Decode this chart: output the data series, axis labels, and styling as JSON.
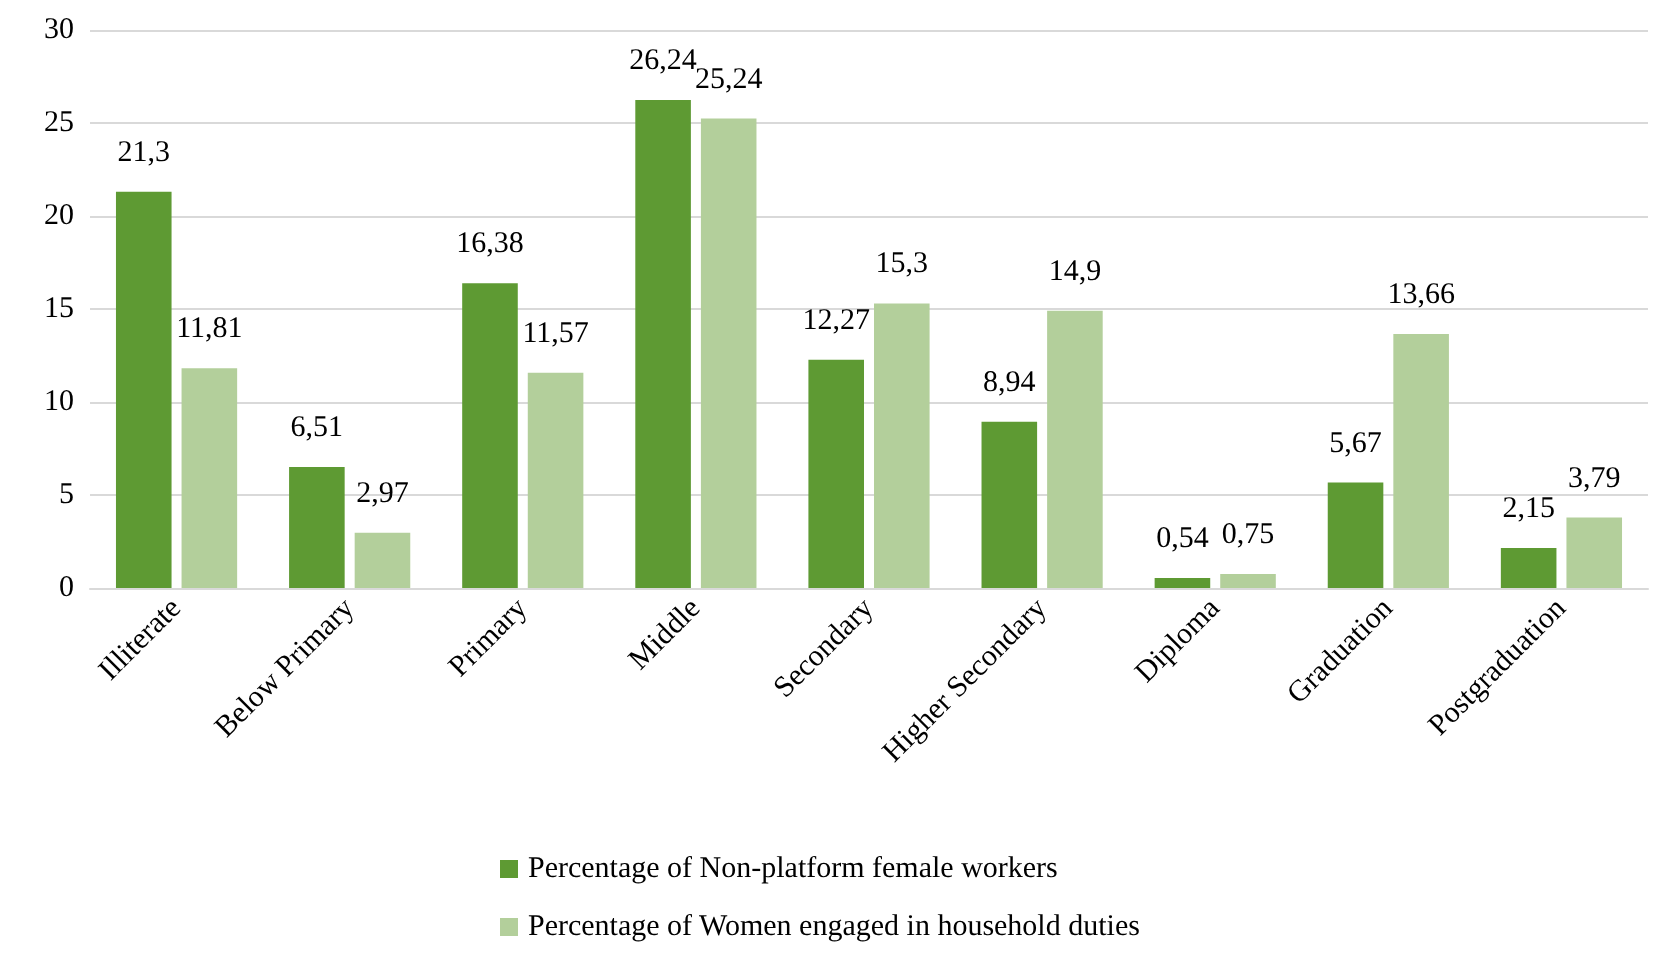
{
  "chart_data": {
    "type": "bar",
    "categories": [
      "Illiterate",
      "Below Primary",
      "Primary",
      "Middle",
      "Secondary",
      "Higher Secondary",
      "Diploma",
      "Graduation",
      "Postgraduation"
    ],
    "series": [
      {
        "name": "Percentage of Non-platform female workers",
        "color": "#5e9a33",
        "values": [
          21.3,
          6.51,
          16.38,
          26.24,
          12.27,
          8.94,
          0.54,
          5.67,
          2.15
        ],
        "value_labels": [
          "21,3",
          "6,51",
          "16,38",
          "26,24",
          "12,27",
          "8,94",
          "0,54",
          "5,67",
          "2,15"
        ]
      },
      {
        "name": "Percentage of Women engaged in household duties",
        "color": "#b3cf9b",
        "values": [
          11.81,
          2.97,
          11.57,
          25.24,
          15.3,
          14.9,
          0.75,
          13.66,
          3.79
        ],
        "value_labels": [
          "11,81",
          "2,97",
          "11,57",
          "25,24",
          "15,3",
          "14,9",
          "0,75",
          "13,66",
          "3,79"
        ]
      }
    ],
    "ylim": [
      0,
      30
    ],
    "yticks": [
      0,
      5,
      10,
      15,
      20,
      25,
      30
    ],
    "grid": "y",
    "legend": "bottom"
  }
}
